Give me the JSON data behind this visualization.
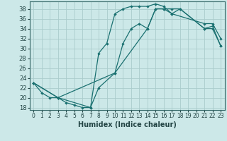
{
  "xlabel": "Humidex (Indice chaleur)",
  "bg_color": "#cce8e8",
  "grid_color": "#aacccc",
  "line_color": "#1a7070",
  "xlim": [
    -0.5,
    23.5
  ],
  "ylim": [
    17.5,
    39.5
  ],
  "xticks": [
    0,
    1,
    2,
    3,
    4,
    5,
    6,
    7,
    8,
    9,
    10,
    11,
    12,
    13,
    14,
    15,
    16,
    17,
    18,
    19,
    20,
    21,
    22,
    23
  ],
  "yticks": [
    18,
    20,
    22,
    24,
    26,
    28,
    30,
    32,
    34,
    36,
    38
  ],
  "line1_x": [
    0,
    1,
    2,
    3,
    4,
    5,
    6,
    7,
    8,
    9,
    10,
    11,
    12,
    13,
    14,
    15,
    16,
    17,
    21,
    22,
    23
  ],
  "line1_y": [
    23,
    21,
    20,
    20,
    19,
    18.5,
    18,
    18,
    29,
    31,
    37,
    38,
    38.5,
    38.5,
    38.5,
    39,
    38.5,
    37,
    35,
    35,
    32
  ],
  "line2_x": [
    0,
    3,
    7,
    8,
    10,
    11,
    12,
    13,
    14,
    15,
    16,
    17,
    18,
    21,
    22,
    23
  ],
  "line2_y": [
    23,
    20,
    18,
    22,
    25,
    31,
    34,
    35,
    34,
    38,
    38,
    38,
    38,
    34,
    34.5,
    30.5
  ],
  "line3_x": [
    0,
    3,
    10,
    14,
    15,
    16,
    17,
    18,
    21,
    22,
    23
  ],
  "line3_y": [
    23,
    20,
    25,
    34,
    38,
    38,
    37,
    38,
    34,
    34,
    30.5
  ]
}
